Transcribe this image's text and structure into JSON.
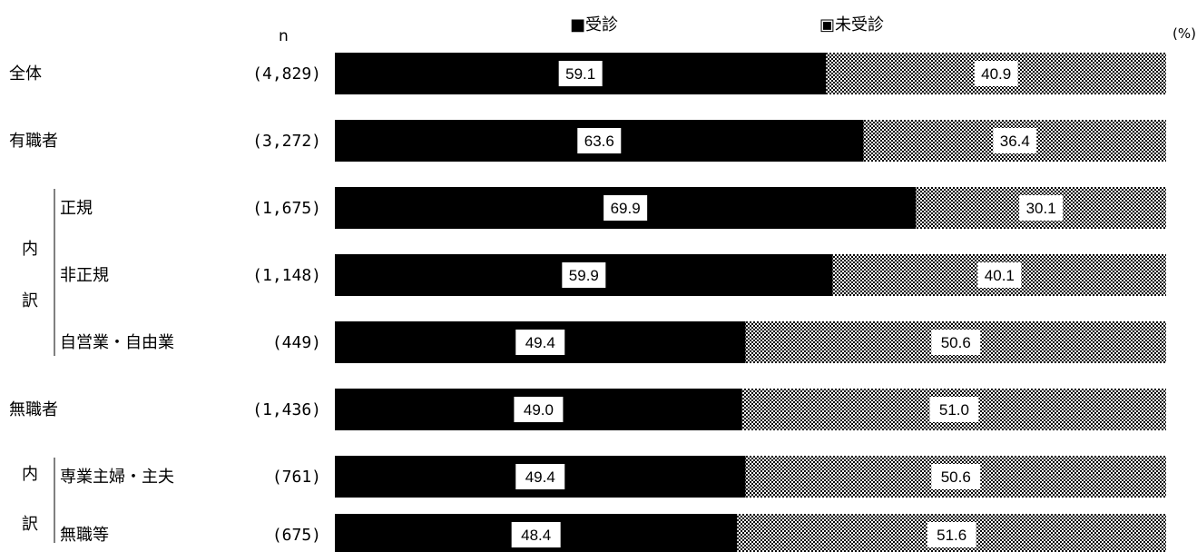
{
  "n_label": "n",
  "unit_label": "(%)",
  "group_label_1": "内訳",
  "group_label_2": "内訳",
  "chart_data": {
    "type": "bar",
    "orientation": "horizontal",
    "stacked": true,
    "xlim": [
      0,
      100
    ],
    "legend_position": "top",
    "series": [
      {
        "name": "受診",
        "color": "#000000",
        "pattern": "solid",
        "values": [
          59.1,
          63.6,
          69.9,
          59.9,
          49.4,
          49.0,
          49.4,
          48.4
        ]
      },
      {
        "name": "未受診",
        "color": "#ffffff",
        "pattern": "checker",
        "values": [
          40.9,
          36.4,
          30.1,
          40.1,
          50.6,
          51.0,
          50.6,
          51.6
        ]
      }
    ],
    "legend_labels": [
      "■受診",
      "▣未受診"
    ],
    "categories": [
      "全体",
      "有職者",
      "正規",
      "非正規",
      "自営業・自由業",
      "無職者",
      "専業主婦・主夫",
      "無職等"
    ],
    "n": [
      "(4,829)",
      "(3,272)",
      "(1,675)",
      "(1,148)",
      "(449)",
      "(1,436)",
      "(761)",
      "(675)"
    ],
    "value_labels": {
      "受診": [
        "59.1",
        "63.6",
        "69.9",
        "59.9",
        "49.4",
        "49.0",
        "49.4",
        "48.4"
      ],
      "未受診": [
        "40.9",
        "36.4",
        "30.1",
        "40.1",
        "50.6",
        "51.0",
        "50.6",
        "51.6"
      ]
    }
  }
}
